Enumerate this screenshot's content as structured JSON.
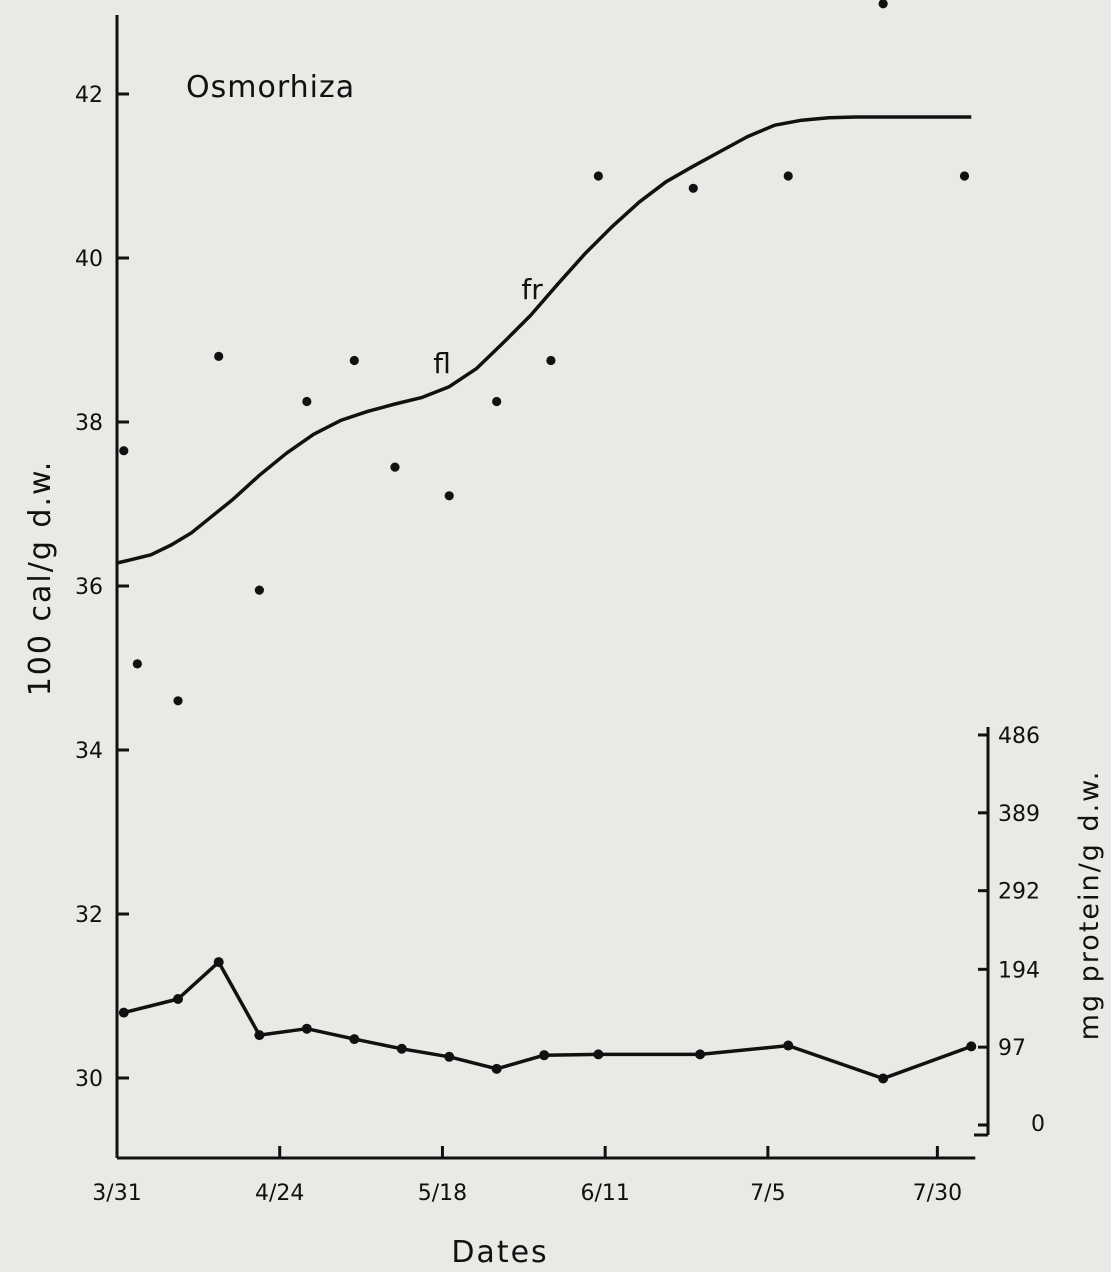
{
  "chart_data": {
    "type": "scatter",
    "title": "Osmorhiza",
    "xlabel": "Dates",
    "ylabel": "100 cal/g d.w.",
    "y2label": "mg protein/g d.w.",
    "x_tick_labels": [
      "3/31",
      "4/24",
      "5/18",
      "6/11",
      "7/5",
      "7/30"
    ],
    "x_tick_days": [
      0,
      24,
      48,
      72,
      96,
      121
    ],
    "xlim_days": [
      0,
      126
    ],
    "ylim": [
      29,
      43
    ],
    "y_ticks": [
      30,
      32,
      34,
      36,
      38,
      40,
      42
    ],
    "y2_ticks": [
      0,
      97,
      194,
      292,
      389,
      486
    ],
    "y2_tick_labels": [
      "0",
      "97",
      "194",
      "292",
      "389",
      "486"
    ],
    "grid": false,
    "annotations": [
      {
        "text": "fl",
        "x": 49,
        "y": 38.6
      },
      {
        "text": "fr",
        "x": 62,
        "y": 39.5
      }
    ],
    "series": [
      {
        "kind": "points",
        "axis": "left",
        "x": [
          1,
          3,
          9,
          15,
          21,
          28,
          35,
          41,
          49,
          56,
          64,
          71,
          85,
          99,
          113,
          125
        ],
        "y": [
          37.65,
          35.05,
          34.6,
          38.8,
          35.95,
          38.25,
          38.75,
          37.45,
          37.1,
          38.25,
          38.75,
          41.0,
          40.85,
          41.0,
          43.1,
          41.0
        ]
      },
      {
        "kind": "fitted-curve",
        "axis": "left",
        "x": [
          0,
          2,
          5,
          8,
          11,
          14,
          17,
          21,
          25,
          29,
          33,
          37,
          41,
          45,
          49,
          53,
          57,
          61,
          65,
          69,
          73,
          77,
          81,
          85,
          89,
          93,
          97,
          101,
          105,
          109,
          113,
          117,
          121,
          126
        ],
        "y": [
          36.28,
          36.32,
          36.38,
          36.5,
          36.65,
          36.85,
          37.05,
          37.35,
          37.62,
          37.85,
          38.02,
          38.13,
          38.22,
          38.3,
          38.43,
          38.65,
          38.97,
          39.3,
          39.68,
          40.05,
          40.38,
          40.68,
          40.93,
          41.12,
          41.3,
          41.48,
          41.62,
          41.68,
          41.71,
          41.72,
          41.72,
          41.72,
          41.72,
          41.72
        ]
      },
      {
        "kind": "line-points",
        "axis": "right",
        "x": [
          1,
          9,
          15,
          21,
          28,
          35,
          42,
          49,
          56,
          63,
          71,
          86,
          99,
          113,
          126
        ],
        "y": [
          140,
          157,
          203,
          112,
          120,
          107,
          95,
          85,
          70,
          87,
          88,
          88,
          99,
          58,
          98
        ]
      }
    ]
  }
}
